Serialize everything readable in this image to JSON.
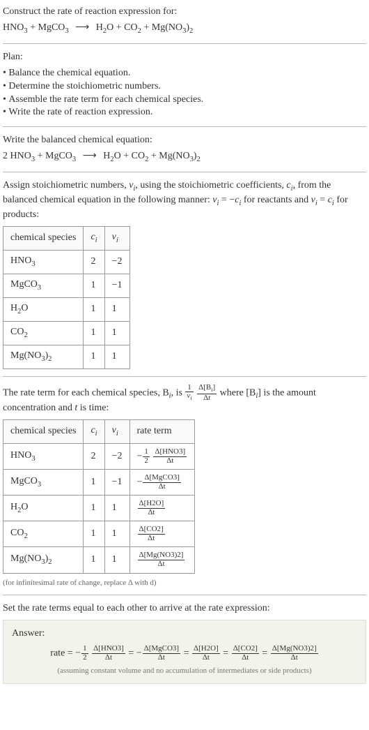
{
  "intro": {
    "prompt": "Construct the rate of reaction expression for:"
  },
  "plan": {
    "heading": "Plan:",
    "items": [
      "Balance the chemical equation.",
      "Determine the stoichiometric numbers.",
      "Assemble the rate term for each chemical species.",
      "Write the rate of reaction expression."
    ]
  },
  "balanced": {
    "heading": "Write the balanced chemical equation:"
  },
  "assign": {
    "text_parts": {
      "p1": "Assign stoichiometric numbers, ",
      "nu_i": "ν",
      "sub_i": "i",
      "p2": ", using the stoichiometric coefficients, ",
      "c_i": "c",
      "p3": ", from the balanced chemical equation in the following manner: ",
      "eq1a": "ν",
      "eq1b": " = −",
      "eq1c": "c",
      "p4": " for reactants and ",
      "eq2a": "ν",
      "eq2b": " = ",
      "eq2c": "c",
      "p5": " for products:"
    }
  },
  "tables": {
    "headers": {
      "species": "chemical species",
      "c": "c",
      "nu": "ν",
      "i": "i",
      "rate": "rate term"
    }
  },
  "species": {
    "r1": {
      "ci": "2",
      "nui": "−2"
    },
    "r2": {
      "ci": "1",
      "nui": "−1"
    },
    "r3": {
      "ci": "1",
      "nui": "1"
    },
    "r4": {
      "ci": "1",
      "nui": "1"
    },
    "r5": {
      "ci": "1",
      "nui": "1"
    }
  },
  "rate_intro": {
    "p1": "The rate term for each chemical species, B",
    "p2": ", is ",
    "p3": " where [B",
    "p4": "] is the amount concentration and ",
    "t": "t",
    "p5": " is time:"
  },
  "note": "(for infinitesimal rate of change, replace Δ with d)",
  "set_equal": "Set the rate terms equal to each other to arrive at the rate expression:",
  "answer": {
    "label": "Answer:",
    "rate_word": "rate = ",
    "assume": "(assuming constant volume and no accumulation of intermediates or side products)"
  },
  "chem": {
    "hno3_a": "HNO",
    "hno3_b": "3",
    "mgco3_a": "MgCO",
    "mgco3_b": "3",
    "h2o_a": "H",
    "h2o_b": "2",
    "h2o_c": "O",
    "co2_a": "CO",
    "co2_b": "2",
    "mgno32_a": "Mg(NO",
    "mgno32_b": "3",
    "mgno32_c": ")",
    "mgno32_d": "2",
    "two": "2 ",
    "plus": " + ",
    "arrow": "⟶"
  },
  "frac": {
    "one": "1",
    "two": "2",
    "half_neg": "−",
    "neg": "−",
    "dt": "Δt",
    "dB": "Δ[B",
    "dB2": "]",
    "nu": "ν",
    "i": "i",
    "hno3": "Δ[HNO3]",
    "mgco3": "Δ[MgCO3]",
    "h2o": "Δ[H2O]",
    "co2": "Δ[CO2]",
    "mgno32": "Δ[Mg(NO3)2]",
    "eq": " = "
  }
}
